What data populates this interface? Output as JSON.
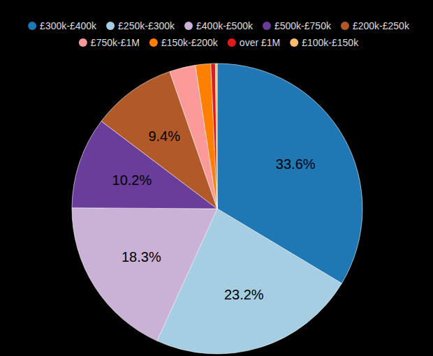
{
  "chart_data": {
    "type": "pie",
    "categories": [
      "£300k-£400k",
      "£250k-£300k",
      "£400k-£500k",
      "£500k-£750k",
      "£200k-£250k",
      "£750k-£1M",
      "£150k-£200k",
      "over £1M",
      "£100k-£150k"
    ],
    "values": [
      33.6,
      23.2,
      18.3,
      10.2,
      9.4,
      2.9,
      1.7,
      0.5,
      0.2
    ],
    "value_labels": [
      "33.6%",
      "23.2%",
      "18.3%",
      "10.2%",
      "9.4%",
      null,
      null,
      null,
      null
    ],
    "colors": [
      "#1f78b4",
      "#a6cee3",
      "#cab2d6",
      "#6a3d9a",
      "#b15928",
      "#fb9a99",
      "#ff7f00",
      "#e31a1c",
      "#fdbf6f"
    ],
    "data_labels": true,
    "legend": "top"
  }
}
